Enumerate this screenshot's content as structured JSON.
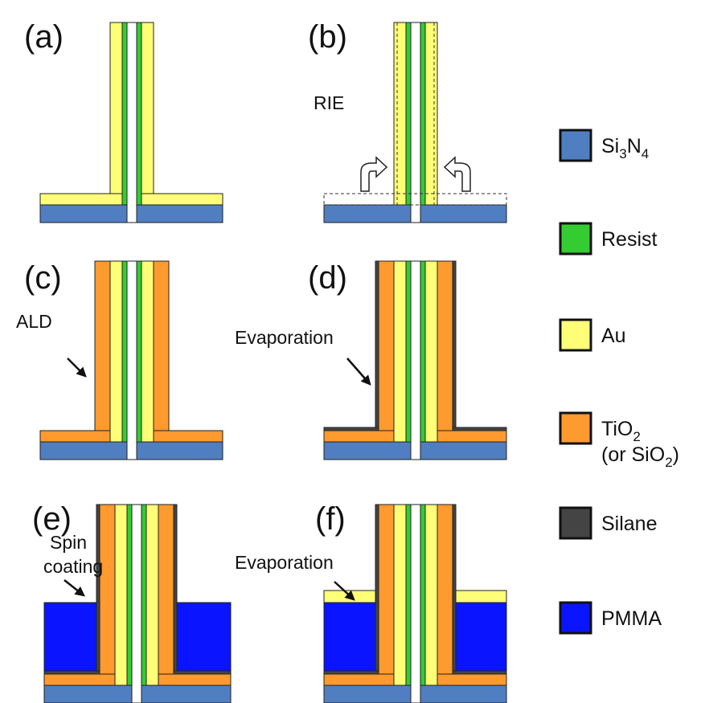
{
  "panels": [
    {
      "label": "(a)"
    },
    {
      "label": "(b)",
      "annotation": [
        "RIE"
      ]
    },
    {
      "label": "(c)",
      "annotation": [
        "ALD"
      ]
    },
    {
      "label": "(d)",
      "annotation": [
        "Evaporation"
      ]
    },
    {
      "label": "(e)",
      "annotation": [
        "Spin",
        "coating"
      ]
    },
    {
      "label": "(f)",
      "annotation": [
        "Evaporation"
      ]
    }
  ],
  "legend": [
    {
      "label": [
        [
          "Si",
          "3",
          "N",
          "4"
        ]
      ],
      "color": "#4f7fc0"
    },
    {
      "label": [
        [
          "Resist"
        ]
      ],
      "color": "#33cc33"
    },
    {
      "label": [
        [
          "Au"
        ]
      ],
      "color": "#ffff77"
    },
    {
      "label": [
        [
          "TiO",
          "2"
        ],
        [
          "(or SiO",
          "2",
          ")"
        ]
      ],
      "color": "#ff9a2e"
    },
    {
      "label": [
        [
          "Silane"
        ]
      ],
      "color": "#444444"
    },
    {
      "label": [
        [
          "PMMA"
        ]
      ],
      "color": "#0a14ff"
    }
  ]
}
